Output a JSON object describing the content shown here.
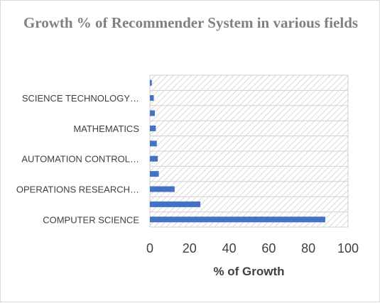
{
  "chart_data": {
    "type": "bar",
    "orientation": "horizontal",
    "title": "Growth % of Recommender System in various fields",
    "xlabel": "% of Growth",
    "ylabel": "",
    "xlim": [
      0,
      100
    ],
    "x_ticks": [
      "0",
      "20",
      "40",
      "60",
      "80",
      "100"
    ],
    "categories": [
      "COMPUTER SCIENCE",
      "",
      "OPERATIONS RESEARCH…",
      "",
      "AUTOMATION CONTROL…",
      "",
      "MATHEMATICS",
      "",
      "SCIENCE TECHNOLOGY…",
      ""
    ],
    "values": [
      88.5,
      25.5,
      12.5,
      4.5,
      4,
      3.5,
      3,
      2.5,
      2,
      1
    ],
    "bar_color": "#4472c4",
    "grid": true,
    "legend": "none"
  }
}
